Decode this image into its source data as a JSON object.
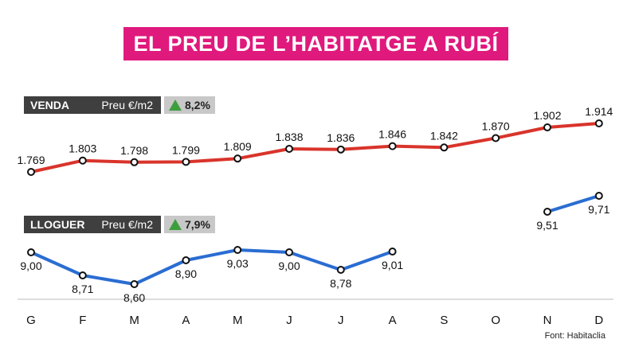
{
  "title": "EL PREU DE L’HABITATGE A RUBÍ",
  "source": "Font: Habitaclia",
  "colors": {
    "title_bg": "#e0197d",
    "venda": "#d9342b",
    "lloguer": "#2a6dd2",
    "up": "#3e9e3e"
  },
  "venda_label": {
    "name": "VENDA",
    "unit": "Preu €/m2",
    "change": "8,2%"
  },
  "lloguer_label": {
    "name": "LLOGUER",
    "unit": "Preu €/m2",
    "change": "7,9%"
  },
  "chart_data": {
    "type": "line",
    "categories": [
      "G",
      "F",
      "M",
      "A",
      "M",
      "J",
      "J",
      "A",
      "S",
      "O",
      "N",
      "D"
    ],
    "series": [
      {
        "name": "VENDA",
        "values": [
          1769,
          1803,
          1798,
          1799,
          1809,
          1838,
          1836,
          1846,
          1842,
          1870,
          1902,
          1914
        ],
        "labels": [
          "1.769",
          "1.803",
          "1.798",
          "1.799",
          "1.809",
          "1.838",
          "1.836",
          "1.846",
          "1.842",
          "1.870",
          "1.902",
          "1.914"
        ]
      },
      {
        "name": "LLOGUER",
        "values": [
          9.0,
          8.71,
          8.6,
          8.9,
          9.03,
          9.0,
          8.78,
          9.01,
          null,
          null,
          9.51,
          9.71
        ],
        "labels": [
          "9,00",
          "8,71",
          "8,60",
          "8,90",
          "9,03",
          "9,00",
          "8,78",
          "9,01",
          "",
          "",
          "9,51",
          "9,71"
        ]
      }
    ],
    "grid": false,
    "legend": "none"
  }
}
